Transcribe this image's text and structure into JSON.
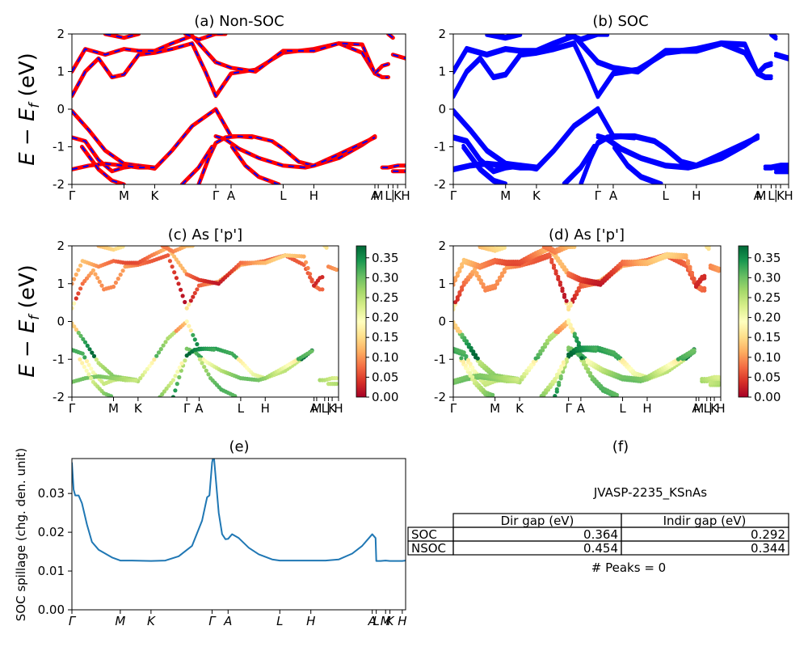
{
  "chart_data": [
    {
      "id": "a",
      "type": "line",
      "title": "(a) Non-SOC",
      "ylabel": "E - E_f (eV)",
      "ylabel_parts": [
        "E",
        " − ",
        "E",
        "f",
        " (eV)"
      ],
      "ylim": [
        -2,
        2
      ],
      "yticks": [
        -2,
        -1,
        0,
        1,
        2
      ],
      "kpath_ticks": [
        {
          "label": "Γ",
          "pos": 0.0
        },
        {
          "label": "M",
          "pos": 0.156
        },
        {
          "label": "K",
          "pos": 0.248
        },
        {
          "label": "Γ",
          "pos": 0.431
        },
        {
          "label": "A",
          "pos": 0.477
        },
        {
          "label": "L",
          "pos": 0.633
        },
        {
          "label": "H",
          "pos": 0.725
        },
        {
          "label": "A",
          "pos": 0.908
        },
        {
          "label": "M",
          "pos": 0.918
        },
        {
          "label": "L",
          "pos": 0.948
        },
        {
          "label": "|",
          "pos": 0.962
        },
        {
          "label": "K",
          "pos": 0.976
        },
        {
          "label": "H",
          "pos": 1.0
        }
      ],
      "colors": {
        "main": "#ff0000",
        "dash": "#0000ff"
      },
      "series": [
        {
          "x": [
            0,
            0.05,
            0.1,
            0.156,
            0.2,
            0.248,
            0.3,
            0.36,
            0.431
          ],
          "y": [
            -0.05,
            -0.55,
            -1.1,
            -1.45,
            -1.5,
            -1.58,
            -1.1,
            -0.45,
            0.0
          ]
        },
        {
          "x": [
            0.431,
            0.477,
            0.54,
            0.6,
            0.633,
            0.68,
            0.725,
            0.8,
            0.87,
            0.908
          ],
          "y": [
            0.0,
            -0.72,
            -0.72,
            -0.85,
            -1.05,
            -1.4,
            -1.5,
            -1.3,
            -0.95,
            -0.72
          ]
        },
        {
          "x": [
            0,
            0.04,
            0.08,
            0.12,
            0.156,
            0.2,
            0.248
          ],
          "y": [
            -0.75,
            -0.85,
            -1.35,
            -1.65,
            -1.55,
            -1.5,
            -1.55
          ]
        },
        {
          "x": [
            0.431,
            0.46,
            0.5,
            0.56,
            0.633,
            0.7,
            0.725,
            0.8,
            0.908
          ],
          "y": [
            -0.72,
            -0.8,
            -1.05,
            -1.3,
            -1.5,
            -1.55,
            -1.5,
            -1.2,
            -0.75
          ]
        },
        {
          "x": [
            0,
            0.05,
            0.1,
            0.156,
            0.2,
            0.248
          ],
          "y": [
            -1.6,
            -1.5,
            -1.45,
            -1.5,
            -1.55,
            -1.55
          ]
        },
        {
          "x": [
            0.38,
            0.41,
            0.431,
            0.46,
            0.5,
            0.54
          ],
          "y": [
            -2.0,
            -1.3,
            -0.9,
            -0.75,
            -0.72,
            -0.75
          ]
        },
        {
          "x": [
            0.03,
            0.08,
            0.12,
            0.156
          ],
          "y": [
            -1.0,
            -1.6,
            -1.9,
            -2.0
          ]
        },
        {
          "x": [
            0.33,
            0.38,
            0.42
          ],
          "y": [
            -2.0,
            -1.55,
            -1.0
          ]
        },
        {
          "x": [
            0.48,
            0.52,
            0.56,
            0.62
          ],
          "y": [
            -1.0,
            -1.5,
            -1.8,
            -2.0
          ]
        },
        {
          "x": [
            0.93,
            0.948,
            0.976,
            1.0
          ],
          "y": [
            -1.55,
            -1.55,
            -1.5,
            -1.5
          ]
        },
        {
          "x": [
            0.962,
            1.0
          ],
          "y": [
            -1.65,
            -1.65
          ]
        },
        {
          "x": [
            0,
            0.04,
            0.08,
            0.12,
            0.156,
            0.2,
            0.248,
            0.3,
            0.36,
            0.4,
            0.431,
            0.477,
            0.55,
            0.633,
            0.68,
            0.725,
            0.8,
            0.87,
            0.908
          ],
          "y": [
            0.35,
            1.0,
            1.35,
            0.85,
            0.92,
            1.45,
            1.5,
            1.6,
            1.75,
            1.0,
            0.35,
            0.95,
            1.05,
            1.5,
            1.55,
            1.6,
            1.75,
            1.5,
            0.95
          ]
        },
        {
          "x": [
            0,
            0.04,
            0.1,
            0.156,
            0.2,
            0.248,
            0.3,
            0.36,
            0.431
          ],
          "y": [
            1.0,
            1.6,
            1.45,
            1.6,
            1.55,
            1.55,
            1.75,
            1.95,
            1.25
          ]
        },
        {
          "x": [
            0.431,
            0.477,
            0.55,
            0.633,
            0.725,
            0.8,
            0.87,
            0.908
          ],
          "y": [
            1.25,
            1.1,
            1.0,
            1.55,
            1.55,
            1.75,
            1.72,
            0.95
          ]
        },
        {
          "x": [
            0.1,
            0.156,
            0.2
          ],
          "y": [
            2.0,
            1.9,
            2.0
          ]
        },
        {
          "x": [
            0.34,
            0.38,
            0.43,
            0.46
          ],
          "y": [
            2.0,
            1.85,
            2.0,
            2.0
          ]
        },
        {
          "x": [
            0.908,
            0.93,
            0.948
          ],
          "y": [
            0.95,
            0.85,
            0.85
          ]
        },
        {
          "x": [
            0.908,
            0.93,
            0.948
          ],
          "y": [
            0.95,
            1.15,
            1.2
          ]
        },
        {
          "x": [
            0.962,
            1.0
          ],
          "y": [
            1.45,
            1.35
          ]
        },
        {
          "x": [
            0.948,
            0.962
          ],
          "y": [
            2.0,
            1.9
          ]
        }
      ]
    },
    {
      "id": "b",
      "type": "line",
      "title": "(b) SOC",
      "ylim": [
        -2,
        2
      ],
      "yticks": [
        -2,
        -1,
        0,
        1,
        2
      ],
      "colors": {
        "main": "#0000ff"
      },
      "split": 0.06
    },
    {
      "id": "c",
      "type": "scatter",
      "title": "(c)  As ['p']",
      "ylabel": "E - E_f (eV)",
      "ylim": [
        -2,
        2
      ],
      "yticks": [
        -2,
        -1,
        0,
        1,
        2
      ],
      "colorbar": {
        "min": 0.0,
        "max": 0.38,
        "ticks": [
          "0.00",
          "0.05",
          "0.10",
          "0.15",
          "0.20",
          "0.25",
          "0.30",
          "0.35"
        ]
      },
      "colormap": "RdYlGn"
    },
    {
      "id": "d",
      "type": "scatter",
      "title": "(d) As ['p']",
      "ylim": [
        -2,
        2
      ],
      "yticks": [
        -2,
        -1,
        0,
        1,
        2
      ],
      "colorbar": {
        "min": 0.0,
        "max": 0.38,
        "ticks": [
          "0.00",
          "0.05",
          "0.10",
          "0.15",
          "0.20",
          "0.25",
          "0.30",
          "0.35"
        ]
      },
      "colormap": "RdYlGn"
    },
    {
      "id": "e",
      "type": "line",
      "title": "(e)",
      "ylabel": "SOC spillage (chg. den. unit)",
      "ylim": [
        0,
        0.039
      ],
      "yticks": [
        "0.00",
        "0.01",
        "0.02",
        "0.03"
      ],
      "ytick_values": [
        0,
        0.01,
        0.02,
        0.03
      ],
      "xticks": [
        {
          "label": "Γ",
          "pos": 0.0
        },
        {
          "label": "M",
          "pos": 0.145
        },
        {
          "label": "K",
          "pos": 0.237
        },
        {
          "label": "Γ",
          "pos": 0.42
        },
        {
          "label": "A",
          "pos": 0.468
        },
        {
          "label": "L",
          "pos": 0.623
        },
        {
          "label": "H",
          "pos": 0.716
        },
        {
          "label": "A",
          "pos": 0.9
        },
        {
          "label": "L",
          "pos": 0.912
        },
        {
          "label": "M",
          "pos": 0.94
        },
        {
          "label": "K",
          "pos": 0.953
        },
        {
          "label": "H",
          "pos": 0.99
        }
      ],
      "color": "#1f77b4",
      "x": [
        0,
        0.005,
        0.01,
        0.02,
        0.03,
        0.045,
        0.06,
        0.08,
        0.1,
        0.12,
        0.145,
        0.18,
        0.237,
        0.28,
        0.32,
        0.36,
        0.39,
        0.405,
        0.412,
        0.42,
        0.425,
        0.432,
        0.44,
        0.45,
        0.46,
        0.468,
        0.48,
        0.5,
        0.53,
        0.56,
        0.6,
        0.623,
        0.66,
        0.716,
        0.76,
        0.8,
        0.84,
        0.87,
        0.89,
        0.9,
        0.91,
        0.912,
        0.925,
        0.94,
        0.953,
        0.97,
        0.99,
        1.0
      ],
      "y": [
        0.038,
        0.031,
        0.0295,
        0.0295,
        0.0275,
        0.022,
        0.0175,
        0.0155,
        0.0145,
        0.0135,
        0.0127,
        0.0127,
        0.0126,
        0.0127,
        0.0138,
        0.0165,
        0.023,
        0.029,
        0.0295,
        0.038,
        0.04,
        0.033,
        0.025,
        0.0195,
        0.0182,
        0.0183,
        0.0195,
        0.0185,
        0.016,
        0.0143,
        0.013,
        0.0127,
        0.0127,
        0.0127,
        0.0127,
        0.013,
        0.0145,
        0.0165,
        0.0185,
        0.0195,
        0.0185,
        0.0126,
        0.0126,
        0.0127,
        0.0126,
        0.0126,
        0.0126,
        0.0127
      ]
    }
  ],
  "panel_f": {
    "title": "(f)",
    "subtitle": "JVASP-2235_KSnAs",
    "columns": [
      "Dir gap (eV)",
      "Indir gap (eV)"
    ],
    "rows": [
      {
        "label": "SOC",
        "values": [
          "0.364",
          "0.292"
        ]
      },
      {
        "label": "NSOC",
        "values": [
          "0.454",
          "0.344"
        ]
      }
    ],
    "peaks": "# Peaks = 0"
  }
}
